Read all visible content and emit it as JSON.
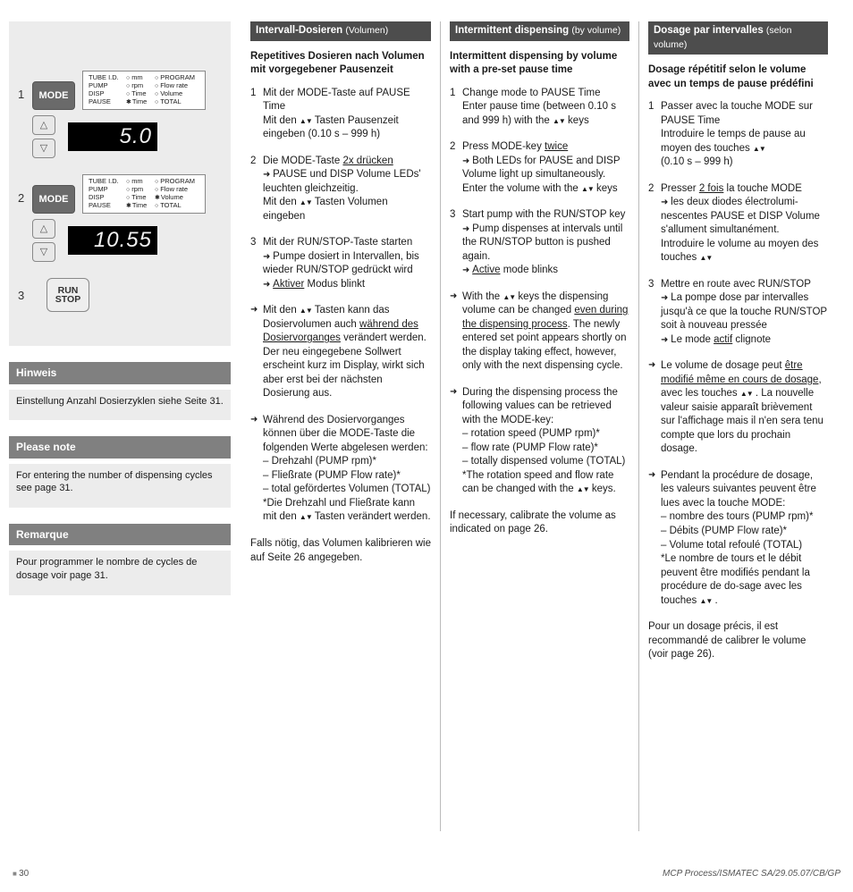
{
  "diagram": {
    "steps": {
      "s1": {
        "num": "1",
        "btn": "MODE",
        "lcd": "5.0"
      },
      "s2": {
        "num": "2",
        "btn": "MODE",
        "lcd": "10.55"
      },
      "s3": {
        "num": "3",
        "run": "RUN",
        "stop": "STOP"
      }
    },
    "panel": {
      "r1a": "TUBE I.D.",
      "r1b": "mm",
      "r1c": "PROGRAM",
      "r2a": "PUMP",
      "r2b": "rpm",
      "r2c": "Flow rate",
      "r3a": "DISP",
      "r3b": "Time",
      "r3c": "Volume",
      "r4a": "PAUSE",
      "r4b": "Time",
      "r4c": "TOTAL"
    },
    "notes": {
      "de_h": "Hinweis",
      "de_t": "Einstellung Anzahl Dosierzyklen siehe Seite 31.",
      "en_h": "Please note",
      "en_t": "For entering the number of dispen­sing cycles see page 31.",
      "fr_h": "Remarque",
      "fr_t": "Pour programmer le nombre de cycles de dosage voir page 31."
    }
  },
  "cols": {
    "de": {
      "bar": "Intervall-Dosieren ",
      "bar_sub": "(Volumen)",
      "sub": "Repetitives Dosieren nach Volumen mit vorgegebener Pausenzeit",
      "s1a": "Mit der MODE-Taste auf PAUSE Time",
      "s1b_pre": "Mit den ",
      "s1b_post": " Tasten Pausenzeit eingeben (0.10 s – 999 h)",
      "s2a_pre": "Die MODE-Taste ",
      "s2a_u": "2x drücken",
      "s2b": "PAUSE und DISP Volume LEDs' leuchten gleichzeitig.",
      "s2c_pre": "Mit den ",
      "s2c_post": " Tasten Volumen eingeben",
      "s3a": "Mit der RUN/STOP-Taste starten",
      "s3b": "Pumpe dosiert in Interval­len, bis wieder RUN/STOP ge­drückt wird",
      "s3c_u": "Aktiver",
      "s3c_post": " Modus blinkt",
      "b1_pre": "Mit den ",
      "b1_mid": " Tasten kann das Dosiervolumen auch ",
      "b1_u": "wäh­rend des Dosiervorganges",
      "b1_post": " verändert werden. Der neu eingegebene Sollwert erscheint kurz im Display,  wirkt sich aber erst bei der nächsten Dosierung aus.",
      "b2a": "Während des Dosiervorganges können über die MODE-Taste die folgenden Werte abgelesen werden:",
      "b2_d1": "Drehzahl (PUMP rpm)*",
      "b2_d2": "Fließrate (PUMP Flow rate)*",
      "b2_d3": "total gefördertes Volumen (TOTAL)",
      "b2_foot_pre": "*Die Drehzahl und Fließrate kann mit den ",
      "b2_foot_post": " Tasten verändert werden.",
      "closing": "Falls nötig, das Volumen kalibrie­ren wie auf Seite 26 angegeben."
    },
    "en": {
      "bar": "Intermittent dispensing ",
      "bar_sub": "(by volume)",
      "sub": "Intermittent dispensing by volu­me with a pre-set pause time",
      "s1a": "Change mode to PAUSE Time",
      "s1b_pre": "Enter pause time (between 0.10 s and 999 h) with the ",
      "s1b_post": " keys",
      "s2a_pre": "Press MODE-key ",
      "s2a_u": "twice",
      "s2b": "Both LEDs for PAUSE and DISP Volume light up simultane­ously. Enter the volume  with the ",
      "s2b_post": " keys",
      "s3a": "Start pump with the RUN/STOP key",
      "s3b": "Pump dispenses at intervals until the RUN/STOP button is pushed again.",
      "s3c_u": "Active",
      "s3c_post": " mode blinks",
      "b1_pre": "With the ",
      "b1_mid": " keys the dispen­sing volume can be changed ",
      "b1_u": "even during the dispensing process",
      "b1_post": ". The newly entered set point appears shortly on the display taking effect, however, only with the next dispensing cycle.",
      "b2a": "During the dispensing process the following values can be re­trieved with the MODE-key:",
      "b2_d1": "rotation speed (PUMP rpm)*",
      "b2_d2": "flow rate (PUMP Flow rate)*",
      "b2_d3": "totally dispensed volume (TOTAL)",
      "b2_foot_pre": "*The rotation speed and flow rate can be changed with the ",
      "b2_foot_post": " keys.",
      "closing": "If necessary, calibrate the volume as indicated on page 26."
    },
    "fr": {
      "bar": "Dosage par intervalles ",
      "bar_sub": "(selon volume)",
      "sub": "Dosage répétitif selon le volu­me avec un temps de pause prédéfini",
      "s1a": "Passer avec la touche MODE sur PAUSE Time",
      "s1b_pre": "Introduire le temps de pause au moyen des touches ",
      "s1b_post": "",
      "s1c": "(0.10 s – 999 h)",
      "s2a_pre": "Presser ",
      "s2a_u": "2 fois",
      "s2a_post": " la touche MODE",
      "s2b": "les deux diodes électrolumi­nescentes PAUSE et DISP Volu­me s'allument simultanément.",
      "s2c_pre": "Introduire le volume au moyen des touches ",
      "s2c_post": "",
      "s3a": "Mettre en route avec RUN/STOP",
      "s3b": "La pompe dose par inter­valles jusqu'à ce que la touche RUN/STOP soit à nouveau  pres­sée",
      "s3c_pre": "Le mode ",
      "s3c_u": "actif",
      "s3c_post": " clignote",
      "b1_pre": "Le volume de dosage peut ",
      "b1_u": "être modifié même en cours de do­sage",
      "b1_mid": ", avec les touches ",
      "b1_post": " . La nouvelle valeur saisie appa­raît brièvement sur l'affichage mais il n'en sera tenu compte que lors du prochain dosage.",
      "b2a": "Pendant la procédure de  do­sage, les valeurs suivantes peuvent être lues avec la touche MODE:",
      "b2_d1": "nombre des tours (PUMP rpm)*",
      "b2_d2": "Débits (PUMP Flow rate)*",
      "b2_d3": "Volume total refoulé (TOTAL)",
      "b2_foot_pre": "*Le nombre de tours et le débit peuvent être modifiés pendant la procédure de do-sage avec les touches ",
      "b2_foot_post": " .",
      "closing": "Pour un dosage précis, il est recommandé de calibrer le volume (voir page 26)."
    }
  },
  "footer": {
    "page": "30",
    "ref": "MCP Process/ISMATEC SA/29.05.07/CB/GP"
  }
}
